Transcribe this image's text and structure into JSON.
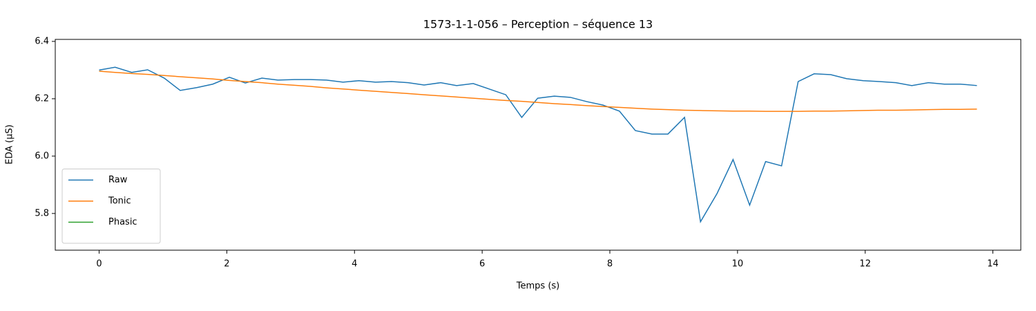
{
  "chart_data": {
    "type": "line",
    "title": "1573-1-1-056 – Perception – séquence 13",
    "xlabel": "Temps (s)",
    "ylabel": "EDA (µS)",
    "x": [
      0,
      0.25,
      0.51,
      0.76,
      1.02,
      1.27,
      1.53,
      1.78,
      2.04,
      2.29,
      2.55,
      2.8,
      3.06,
      3.31,
      3.56,
      3.82,
      4.07,
      4.33,
      4.58,
      4.84,
      5.09,
      5.35,
      5.6,
      5.86,
      6.11,
      6.37,
      6.62,
      6.87,
      7.13,
      7.38,
      7.64,
      7.89,
      8.15,
      8.4,
      8.66,
      8.91,
      9.17,
      9.42,
      9.68,
      9.93,
      10.19,
      10.44,
      10.69,
      10.95,
      11.2,
      11.46,
      11.71,
      11.97,
      12.22,
      12.48,
      12.73,
      12.99,
      13.24,
      13.49,
      13.75
    ],
    "series": [
      {
        "name": "Raw",
        "color": "#1f77b4",
        "values": [
          6.3,
          6.31,
          6.292,
          6.301,
          6.272,
          6.229,
          6.239,
          6.251,
          6.275,
          6.255,
          6.272,
          6.265,
          6.267,
          6.267,
          6.265,
          6.258,
          6.263,
          6.258,
          6.26,
          6.256,
          6.248,
          6.256,
          6.246,
          6.253,
          6.234,
          6.214,
          6.135,
          6.202,
          6.209,
          6.205,
          6.19,
          6.178,
          6.157,
          6.089,
          6.077,
          6.077,
          6.135,
          5.771,
          5.87,
          5.988,
          5.829,
          5.981,
          5.966,
          6.26,
          6.287,
          6.284,
          6.27,
          6.263,
          6.26,
          6.256,
          6.246,
          6.256,
          6.251,
          6.251,
          6.246
        ]
      },
      {
        "name": "Tonic",
        "color": "#ff7f0e",
        "values": [
          6.296,
          6.292,
          6.288,
          6.285,
          6.281,
          6.277,
          6.273,
          6.269,
          6.264,
          6.26,
          6.256,
          6.251,
          6.247,
          6.243,
          6.238,
          6.234,
          6.23,
          6.226,
          6.222,
          6.218,
          6.214,
          6.21,
          6.206,
          6.202,
          6.198,
          6.194,
          6.191,
          6.187,
          6.183,
          6.18,
          6.176,
          6.173,
          6.17,
          6.167,
          6.164,
          6.162,
          6.16,
          6.159,
          6.158,
          6.157,
          6.157,
          6.156,
          6.156,
          6.156,
          6.157,
          6.157,
          6.158,
          6.159,
          6.16,
          6.16,
          6.161,
          6.162,
          6.163,
          6.163,
          6.164
        ]
      },
      {
        "name": "Phasic",
        "color": "#2ca02c",
        "values": [
          null,
          null,
          null,
          null,
          null,
          null,
          null,
          null,
          null,
          null,
          null,
          null,
          null,
          null,
          null,
          null,
          null,
          null,
          null,
          null,
          null,
          null,
          null,
          null,
          null,
          null,
          null,
          null,
          null,
          null,
          null,
          null,
          null,
          null,
          null,
          null,
          null,
          null,
          null,
          null,
          null,
          null,
          null,
          null,
          null,
          null,
          null,
          null,
          null,
          null,
          null,
          null,
          null,
          null,
          null
        ]
      }
    ],
    "xlim": [
      -0.6875,
      14.4375
    ],
    "xticks": [
      0,
      2,
      4,
      6,
      8,
      10,
      12,
      14
    ],
    "ylim": [
      5.672,
      6.407
    ],
    "yticks": [
      5.8,
      {
        "value": 6,
        "label": "6.0"
      },
      6.2,
      6.4
    ],
    "grid": false,
    "legend": "lower left"
  }
}
